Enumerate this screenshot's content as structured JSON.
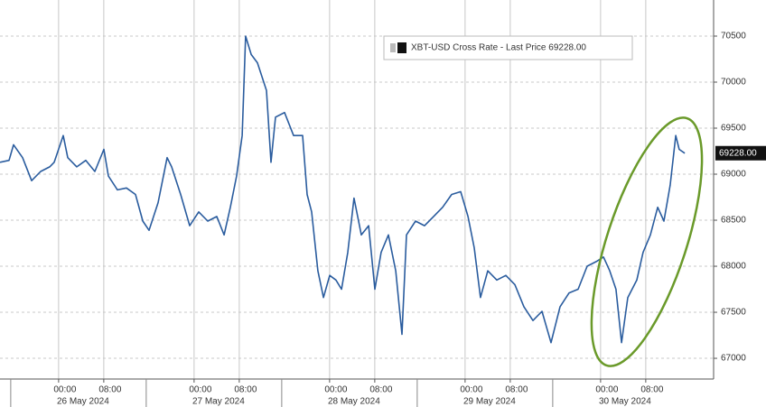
{
  "chart_data": {
    "type": "line",
    "x": [
      -11.5,
      -9.9,
      -9.1,
      -7.5,
      -5.9,
      -4.3,
      -2.7,
      -1.9,
      -0.3,
      0.5,
      2.1,
      3.7,
      5.3,
      6.9,
      7.7,
      9.3,
      10.9,
      12.5,
      13.8,
      14.9,
      16.5,
      18.1,
      18.9,
      20.5,
      22.1,
      23.7,
      25.3,
      26.9,
      28.2,
      29.3,
      30.4,
      31.4,
      32.0,
      33.0,
      34.1,
      35.7,
      36.5,
      37.3,
      38.9,
      40.5,
      42.1,
      42.9,
      43.7,
      44.8,
      45.8,
      46.9,
      48.0,
      49.0,
      50.1,
      51.2,
      52.5,
      53.8,
      54.9,
      56.0,
      57.3,
      58.6,
      59.7,
      60.5,
      62.1,
      63.7,
      65.3,
      66.9,
      68.5,
      70.1,
      71.4,
      72.5,
      73.6,
      74.9,
      76.5,
      78.1,
      79.7,
      81.3,
      82.9,
      84.5,
      86.1,
      87.7,
      89.3,
      90.9,
      92.5,
      94.1,
      95.4,
      96.5,
      97.6,
      98.6,
      99.7,
      101.3,
      102.4,
      103.7,
      105.0,
      106.1,
      107.2,
      108.2,
      108.8,
      109.8
    ],
    "series": [
      {
        "name": "XBT-USD Cross Rate - Last Price 69228.00",
        "color": "#2a5c9e",
        "values": [
          69130,
          69150,
          69320,
          69180,
          68930,
          69030,
          69080,
          69130,
          69420,
          69180,
          69080,
          69150,
          69030,
          69270,
          68980,
          68830,
          68850,
          68780,
          68490,
          68390,
          68690,
          69180,
          69080,
          68780,
          68440,
          68590,
          68490,
          68540,
          68340,
          68640,
          68980,
          69420,
          70500,
          70300,
          70210,
          69910,
          69130,
          69620,
          69670,
          69420,
          69420,
          68780,
          68590,
          67950,
          67660,
          67900,
          67850,
          67750,
          68150,
          68740,
          68340,
          68440,
          67750,
          68150,
          68340,
          67950,
          67260,
          68340,
          68490,
          68440,
          68540,
          68640,
          68780,
          68810,
          68540,
          68200,
          67660,
          67950,
          67850,
          67900,
          67800,
          67560,
          67410,
          67510,
          67170,
          67560,
          67710,
          67750,
          68000,
          68050,
          68100,
          67950,
          67750,
          67170,
          67660,
          67850,
          68150,
          68340,
          68640,
          68490,
          68880,
          69420,
          69270,
          69228
        ]
      }
    ],
    "last_price": {
      "value": 69228,
      "label": "69228.00"
    },
    "xlim": [
      -11.5,
      114.9
    ],
    "xticks": [
      {
        "value": 0,
        "label": "00:00"
      },
      {
        "value": 8,
        "label": "08:00"
      },
      {
        "value": 24,
        "label": "00:00"
      },
      {
        "value": 32,
        "label": "08:00"
      },
      {
        "value": 48,
        "label": "00:00"
      },
      {
        "value": 56,
        "label": "08:00"
      },
      {
        "value": 72,
        "label": "00:00"
      },
      {
        "value": 80,
        "label": "08:00"
      },
      {
        "value": 96,
        "label": "00:00"
      },
      {
        "value": 104,
        "label": "08:00"
      }
    ],
    "dates": [
      "26 May 2024",
      "27 May 2024",
      "28 May 2024",
      "29 May 2024",
      "30 May 2024"
    ],
    "ylim": [
      66775,
      70892
    ],
    "yticks": [
      67000,
      67500,
      68000,
      68500,
      69000,
      69500,
      70000,
      70500
    ],
    "grid": true
  }
}
